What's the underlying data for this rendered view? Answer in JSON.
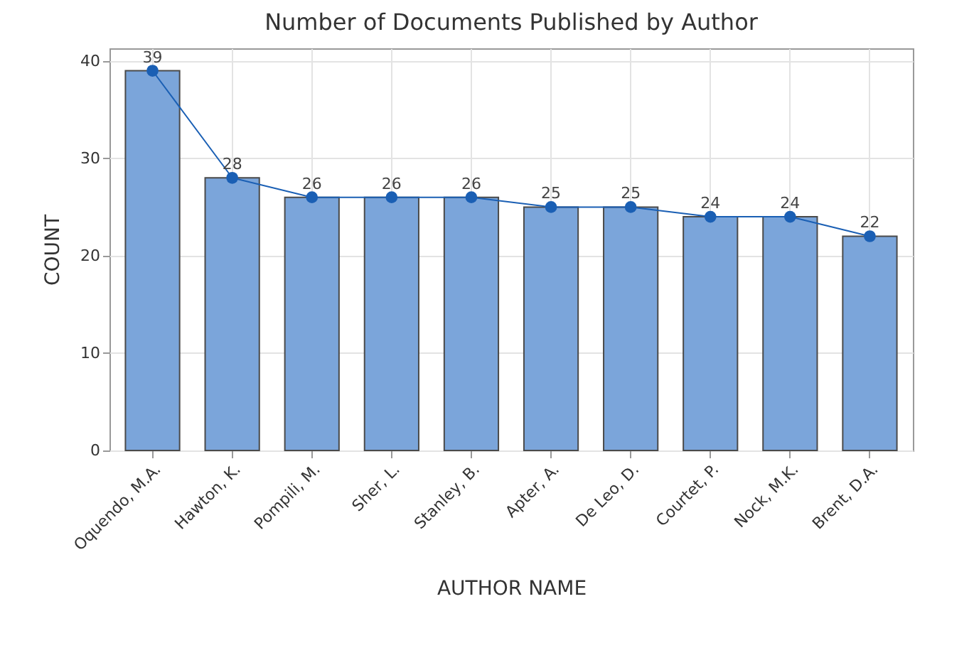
{
  "chart_data": {
    "type": "bar",
    "title": "Number of Documents Published by Author",
    "xlabel": "AUTHOR NAME",
    "ylabel": "COUNT",
    "categories": [
      "Oquendo, M.A.",
      "Hawton, K.",
      "Pompili, M.",
      "Sher, L.",
      "Stanley, B.",
      "Apter, A.",
      "De Leo, D.",
      "Courtet, P.",
      "Nock, M.K.",
      "Brent, D.A."
    ],
    "series": [
      {
        "color": "#7ba5da",
        "values": [
          39,
          28,
          26,
          26,
          26,
          25,
          25,
          24,
          24,
          22
        ]
      },
      {
        "type": "line",
        "color": "#1a5fb4",
        "values": [
          39,
          28,
          26,
          26,
          26,
          25,
          25,
          24,
          24,
          22
        ],
        "value_labels": [
          "39",
          "28",
          "26",
          "26",
          "26",
          "25",
          "25",
          "24",
          "24",
          "22"
        ]
      }
    ],
    "ylim": [
      0,
      41.3
    ],
    "yticks": [
      0,
      10,
      20,
      30,
      40
    ],
    "grid": true,
    "marker": "circle",
    "line_style": "solid"
  }
}
